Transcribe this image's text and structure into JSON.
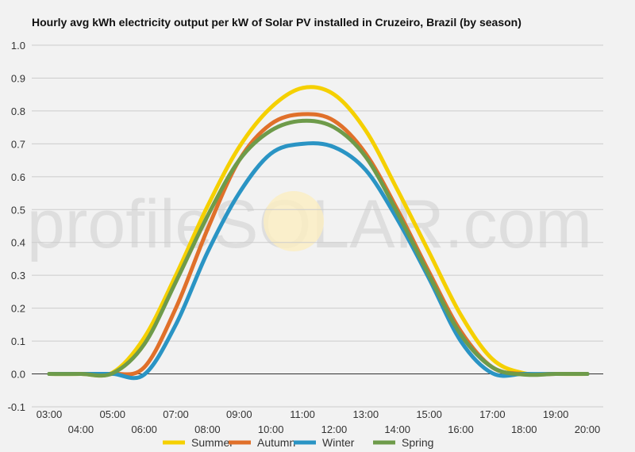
{
  "chart_data": {
    "type": "line",
    "title": "Hourly avg kWh electricity output per kW of Solar PV installed in Cruzeiro, Brazil (by season)",
    "xlabel": "",
    "ylabel": "",
    "ylim": [
      -0.1,
      1.0
    ],
    "yticks": [
      "-0.1",
      "0.0",
      "0.1",
      "0.2",
      "0.3",
      "0.4",
      "0.5",
      "0.6",
      "0.7",
      "0.8",
      "0.9",
      "1.0"
    ],
    "categories": [
      "03:00",
      "04:00",
      "05:00",
      "06:00",
      "07:00",
      "08:00",
      "09:00",
      "10:00",
      "11:00",
      "12:00",
      "13:00",
      "14:00",
      "15:00",
      "16:00",
      "17:00",
      "18:00",
      "19:00",
      "20:00"
    ],
    "grid": true,
    "legend_position": "bottom",
    "watermark": "profileSOLAR.com",
    "series": [
      {
        "name": "Summer",
        "color": "#f5d000",
        "values": [
          0,
          0,
          0.004,
          0.11,
          0.3,
          0.51,
          0.69,
          0.81,
          0.87,
          0.85,
          0.74,
          0.56,
          0.37,
          0.18,
          0.045,
          0.002,
          0,
          0
        ]
      },
      {
        "name": "Autumn",
        "color": "#e0702a",
        "values": [
          0,
          0,
          0,
          0.02,
          0.2,
          0.44,
          0.65,
          0.76,
          0.79,
          0.77,
          0.67,
          0.5,
          0.31,
          0.13,
          0.02,
          0,
          0,
          0
        ]
      },
      {
        "name": "Winter",
        "color": "#2a94c4",
        "values": [
          0,
          0,
          0,
          -0.002,
          0.15,
          0.37,
          0.55,
          0.67,
          0.7,
          0.69,
          0.62,
          0.47,
          0.29,
          0.1,
          0.002,
          0,
          0,
          0
        ]
      },
      {
        "name": "Spring",
        "color": "#6e9b4a",
        "values": [
          0,
          0,
          0.002,
          0.09,
          0.28,
          0.48,
          0.65,
          0.74,
          0.77,
          0.75,
          0.66,
          0.49,
          0.3,
          0.12,
          0.02,
          -0.002,
          0,
          0
        ]
      }
    ]
  }
}
